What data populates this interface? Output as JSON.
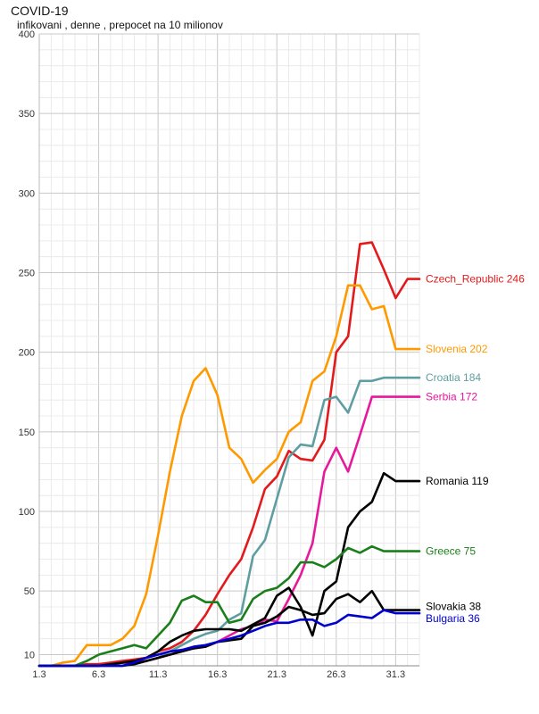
{
  "chart_data": {
    "type": "line",
    "title": "COVID-19",
    "subtitle": "infikovani , denne , prepocet na 10 milionov",
    "xlabel": "",
    "ylabel": "",
    "x": [
      "1.3",
      "2.3",
      "3.3",
      "4.3",
      "5.3",
      "6.3",
      "7.3",
      "8.3",
      "9.3",
      "10.3",
      "11.3",
      "12.3",
      "13.3",
      "14.3",
      "15.3",
      "16.3",
      "17.3",
      "18.3",
      "19.3",
      "20.3",
      "21.3",
      "22.3",
      "23.3",
      "24.3",
      "25.3",
      "26.3",
      "27.3",
      "28.3",
      "29.3",
      "30.3",
      "31.3",
      "1.4",
      "2.4"
    ],
    "x_tick_labels": [
      "1.3",
      "6.3",
      "11.3",
      "16.3",
      "21.3",
      "26.3",
      "31.3"
    ],
    "y_ticks": [
      10,
      50,
      100,
      150,
      200,
      250,
      300,
      350,
      400
    ],
    "ylim": [
      3,
      400
    ],
    "grid": true,
    "series": [
      {
        "name": "Czech_Republic",
        "color": "#e31a1c",
        "end_label": "Czech_Republic 246",
        "values": [
          3,
          3,
          3,
          3,
          4,
          4,
          5,
          6,
          7,
          8,
          12,
          14,
          18,
          25,
          35,
          48,
          60,
          70,
          90,
          114,
          122,
          138,
          133,
          132,
          145,
          200,
          210,
          268,
          269,
          252,
          234,
          246,
          246
        ]
      },
      {
        "name": "Slovenia",
        "color": "#ff9900",
        "end_label": "Slovenia 202",
        "values": [
          3,
          3,
          5,
          6,
          16,
          16,
          16,
          20,
          28,
          48,
          85,
          125,
          160,
          182,
          190,
          173,
          140,
          133,
          118,
          126,
          133,
          150,
          156,
          182,
          188,
          210,
          242,
          242,
          227,
          229,
          202,
          202,
          202
        ]
      },
      {
        "name": "Croatia",
        "color": "#5f9ea0",
        "end_label": "Croatia 184",
        "values": [
          3,
          3,
          3,
          3,
          3,
          3,
          4,
          5,
          5,
          6,
          8,
          12,
          16,
          20,
          23,
          25,
          32,
          36,
          72,
          82,
          108,
          134,
          142,
          141,
          170,
          172,
          162,
          182,
          182,
          184,
          184,
          184,
          184
        ]
      },
      {
        "name": "Serbia",
        "color": "#e6199b",
        "end_label": "Serbia 172",
        "values": [
          3,
          3,
          3,
          3,
          3,
          3,
          4,
          5,
          5,
          6,
          8,
          10,
          12,
          14,
          15,
          18,
          22,
          26,
          28,
          32,
          31,
          45,
          60,
          80,
          125,
          140,
          125,
          148,
          172,
          172,
          172,
          172,
          172
        ]
      },
      {
        "name": "Romania",
        "color": "#000000",
        "end_label": "Romania 119",
        "values": [
          3,
          3,
          3,
          3,
          3,
          3,
          4,
          5,
          6,
          8,
          12,
          18,
          22,
          25,
          26,
          26,
          26,
          25,
          29,
          33,
          47,
          52,
          40,
          22,
          50,
          56,
          90,
          100,
          106,
          124,
          119,
          119,
          119
        ]
      },
      {
        "name": "Greece",
        "color": "#1a7f1a",
        "end_label": "Greece 75",
        "values": [
          3,
          3,
          3,
          3,
          6,
          10,
          12,
          14,
          16,
          14,
          22,
          30,
          44,
          47,
          43,
          43,
          30,
          32,
          45,
          50,
          52,
          58,
          68,
          68,
          65,
          70,
          77,
          74,
          78,
          75,
          75,
          75,
          75
        ]
      },
      {
        "name": "Slovakia",
        "color": "#000000",
        "end_label": "Slovakia 38",
        "values": [
          3,
          3,
          3,
          3,
          3,
          3,
          3,
          3,
          4,
          6,
          8,
          10,
          12,
          14,
          15,
          18,
          19,
          20,
          28,
          30,
          34,
          40,
          38,
          35,
          36,
          45,
          48,
          43,
          50,
          38,
          38,
          38,
          38
        ]
      },
      {
        "name": "Bulgaria",
        "color": "#0000cc",
        "end_label": "Bulgaria 36",
        "values": [
          3,
          3,
          3,
          3,
          3,
          3,
          3,
          3,
          5,
          8,
          10,
          12,
          13,
          15,
          16,
          18,
          20,
          22,
          25,
          28,
          30,
          30,
          32,
          32,
          28,
          30,
          35,
          34,
          33,
          38,
          36,
          36,
          36
        ]
      }
    ]
  }
}
